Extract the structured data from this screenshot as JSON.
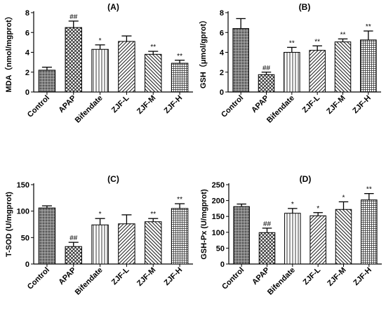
{
  "categories": [
    "Control",
    "APAP",
    "Bifendate",
    "ZJF-L",
    "ZJF-M",
    "ZJF-H"
  ],
  "chart_data": [
    {
      "type": "bar",
      "title": "(A)",
      "ylabel": "MDA（nmol/mgprot）",
      "ylim": [
        0,
        8
      ],
      "yticks": [
        0,
        2,
        4,
        6,
        8
      ],
      "categories": [
        "Control",
        "APAP",
        "Bifendate",
        "ZJF-L",
        "ZJF-M",
        "ZJF-H"
      ],
      "values": [
        2.2,
        6.5,
        4.3,
        5.1,
        3.8,
        2.9
      ],
      "errors": [
        0.3,
        0.65,
        0.45,
        0.55,
        0.3,
        0.3
      ],
      "annotations": [
        "",
        "##",
        "*",
        "",
        "**",
        "**"
      ]
    },
    {
      "type": "bar",
      "title": "(B)",
      "ylabel": "GSH（μmol/gprot）",
      "ylim": [
        0,
        8
      ],
      "yticks": [
        0,
        2,
        4,
        6,
        8
      ],
      "categories": [
        "Control",
        "APAP",
        "Bifendate",
        "ZJF-L",
        "ZJF-M",
        "ZJF-H"
      ],
      "values": [
        6.4,
        1.75,
        4.0,
        4.2,
        5.05,
        5.25
      ],
      "errors": [
        1.0,
        0.25,
        0.5,
        0.45,
        0.3,
        0.9
      ],
      "annotations": [
        "",
        "##",
        "**",
        "**",
        "**",
        "**"
      ]
    },
    {
      "type": "bar",
      "title": "(C)",
      "ylabel": "T-SOD (U/mgprot)",
      "ylim": [
        0,
        150
      ],
      "yticks": [
        0,
        50,
        100,
        150
      ],
      "categories": [
        "Control",
        "APAP",
        "Bifendate",
        "ZJF-L",
        "ZJF-M",
        "ZJF-H"
      ],
      "values": [
        106,
        33,
        74,
        76,
        80,
        105
      ],
      "errors": [
        4,
        8,
        12,
        17,
        6,
        9
      ],
      "annotations": [
        "",
        "##",
        "*",
        "",
        "**",
        "**"
      ]
    },
    {
      "type": "bar",
      "title": "(D)",
      "ylabel": "GSH-Px (U/mgprot)",
      "ylim": [
        0,
        250
      ],
      "yticks": [
        0,
        50,
        100,
        150,
        200,
        250
      ],
      "categories": [
        "Control",
        "APAP",
        "Bifendate",
        "ZJF-L",
        "ZJF-M",
        "ZJF-H"
      ],
      "values": [
        181,
        99,
        160,
        152,
        172,
        202
      ],
      "errors": [
        8,
        14,
        15,
        10,
        24,
        20
      ],
      "annotations": [
        "",
        "##",
        "*",
        "*",
        "*",
        "**"
      ]
    }
  ]
}
